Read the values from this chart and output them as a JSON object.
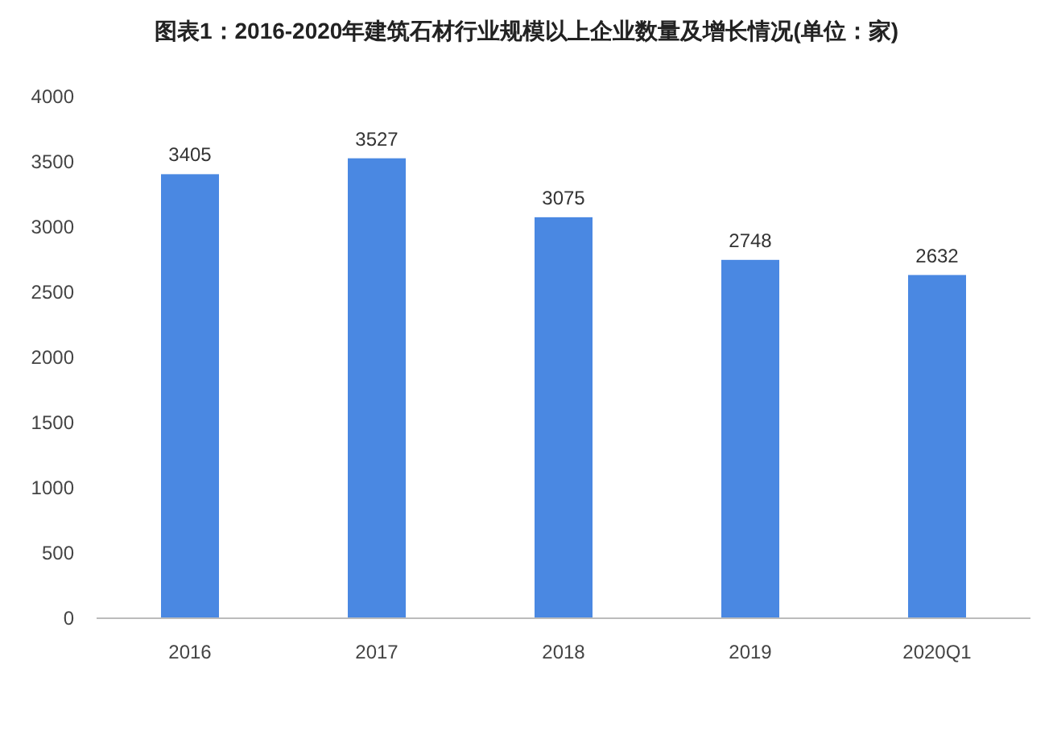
{
  "chart_data": {
    "type": "bar",
    "title": "图表1：2016-2020年建筑石材行业规模以上企业数量及增长情况(单位：家)",
    "categories": [
      "2016",
      "2017",
      "2018",
      "2019",
      "2020Q1"
    ],
    "values": [
      3405,
      3527,
      3075,
      2748,
      2632
    ],
    "color": "#4a88e2",
    "ylim": [
      0,
      4000
    ],
    "yticks": [
      0,
      500,
      1000,
      1500,
      2000,
      2500,
      3000,
      3500,
      4000
    ],
    "data_labels": true
  }
}
